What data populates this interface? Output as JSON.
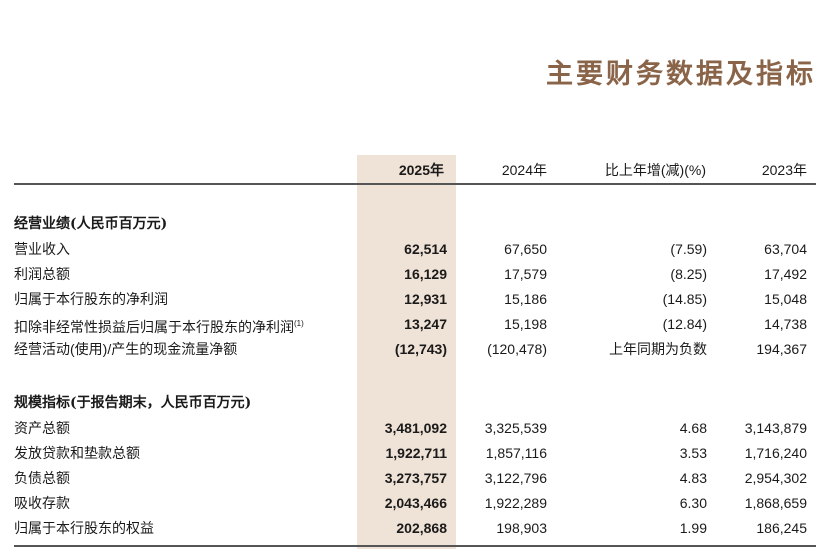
{
  "title": "主要财务数据及指标",
  "columns": {
    "y2025": "2025年",
    "y2024": "2024年",
    "change": "比上年增(减)(%)",
    "y2023": "2023年"
  },
  "sections": [
    {
      "title": "经营业绩(人民币百万元)",
      "rows": [
        {
          "label": "营业收入",
          "note": "",
          "y2025": "62,514",
          "y2024": "67,650",
          "change": "(7.59)",
          "y2023": "63,704"
        },
        {
          "label": "利润总额",
          "note": "",
          "y2025": "16,129",
          "y2024": "17,579",
          "change": "(8.25)",
          "y2023": "17,492"
        },
        {
          "label": "归属于本行股东的净利润",
          "note": "",
          "y2025": "12,931",
          "y2024": "15,186",
          "change": "(14.85)",
          "y2023": "15,048"
        },
        {
          "label": "扣除非经常性损益后归属于本行股东的净利润",
          "note": "(1)",
          "y2025": "13,247",
          "y2024": "15,198",
          "change": "(12.84)",
          "y2023": "14,738"
        },
        {
          "label": "经营活动(使用)/产生的现金流量净额",
          "note": "",
          "y2025": "(12,743)",
          "y2024": "(120,478)",
          "change": "上年同期为负数",
          "y2023": "194,367"
        }
      ]
    },
    {
      "title": "规模指标(于报告期末，人民币百万元)",
      "rows": [
        {
          "label": "资产总额",
          "note": "",
          "y2025": "3,481,092",
          "y2024": "3,325,539",
          "change": "4.68",
          "y2023": "3,143,879"
        },
        {
          "label": "发放贷款和垫款总额",
          "note": "",
          "y2025": "1,922,711",
          "y2024": "1,857,116",
          "change": "3.53",
          "y2023": "1,716,240"
        },
        {
          "label": "负债总额",
          "note": "",
          "y2025": "3,273,757",
          "y2024": "3,122,796",
          "change": "4.83",
          "y2023": "2,954,302"
        },
        {
          "label": "吸收存款",
          "note": "",
          "y2025": "2,043,466",
          "y2024": "1,922,289",
          "change": "6.30",
          "y2023": "1,868,659"
        },
        {
          "label": "归属于本行股东的权益",
          "note": "",
          "y2025": "202,868",
          "y2024": "198,903",
          "change": "1.99",
          "y2023": "186,245"
        }
      ]
    }
  ]
}
